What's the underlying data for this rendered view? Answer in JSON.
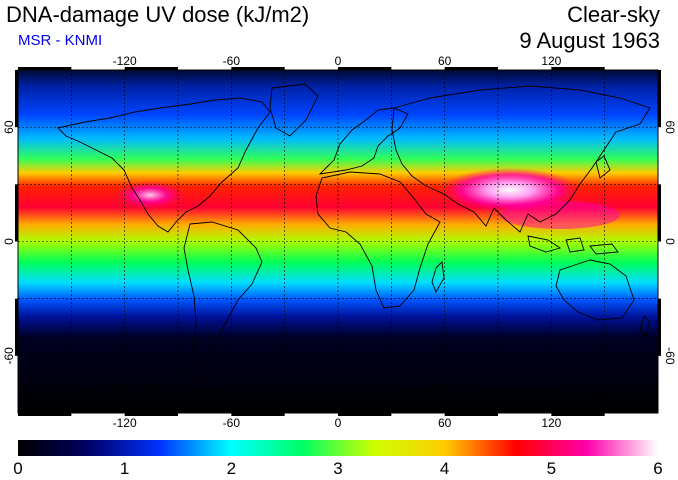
{
  "header": {
    "title": "DNA-damage UV dose (kJ/m2)",
    "subtitle": "MSR - KNMI",
    "subtitle_color": "#0000ee",
    "sky_condition": "Clear-sky",
    "date": "9 August 1963"
  },
  "map": {
    "projection": "equirectangular",
    "lon_range": [
      -180,
      180
    ],
    "lat_range": [
      -90,
      90
    ],
    "grid": true,
    "lon_ticks": [
      {
        "value": -120,
        "label": "-120"
      },
      {
        "value": -60,
        "label": "-60"
      },
      {
        "value": 0,
        "label": "0"
      },
      {
        "value": 60,
        "label": "60"
      },
      {
        "value": 120,
        "label": "120"
      }
    ],
    "lat_ticks": [
      {
        "value": 60,
        "label": "60"
      },
      {
        "value": 0,
        "label": "0"
      },
      {
        "value": -60,
        "label": "-60"
      }
    ]
  },
  "colorbar": {
    "range": [
      0,
      6
    ],
    "labels": [
      "0",
      "1",
      "2",
      "3",
      "4",
      "5",
      "6"
    ],
    "colors": [
      "#000000",
      "#000066",
      "#0033ff",
      "#00ffff",
      "#00ff66",
      "#ccff00",
      "#ffcc00",
      "#ff0000",
      "#ff00aa",
      "#ffffff"
    ]
  }
}
